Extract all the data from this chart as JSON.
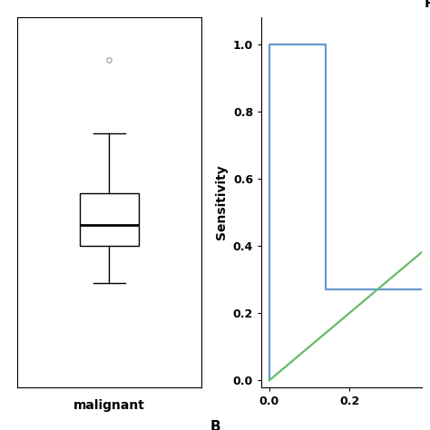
{
  "boxplot": {
    "median": 0.46,
    "q1": 0.4,
    "q3": 0.55,
    "whisker_low": 0.295,
    "whisker_high": 0.72,
    "outlier": 0.93,
    "xlabel": "malignant",
    "ylim": [
      0.0,
      1.05
    ],
    "xlim": [
      0.5,
      1.5
    ]
  },
  "roc": {
    "blue_x": [
      0.0,
      0.0,
      0.14,
      0.14,
      1.0
    ],
    "blue_y": [
      0.0,
      1.0,
      1.0,
      0.27,
      0.27
    ],
    "green_x": [
      0.0,
      1.0
    ],
    "green_y": [
      0.0,
      1.0
    ],
    "blue_color": "#6699cc",
    "green_color": "#66bb66",
    "ylabel": "Sensitivity",
    "yticks": [
      0.0,
      0.2,
      0.4,
      0.6,
      0.8,
      1.0
    ],
    "xticks": [
      0.0,
      0.2
    ],
    "xlim": [
      -0.02,
      0.38
    ],
    "ylim": [
      -0.02,
      1.08
    ],
    "xlabel_b": "B",
    "label_R": "R"
  },
  "fig_width": 4.74,
  "fig_height": 4.74,
  "dpi": 100
}
